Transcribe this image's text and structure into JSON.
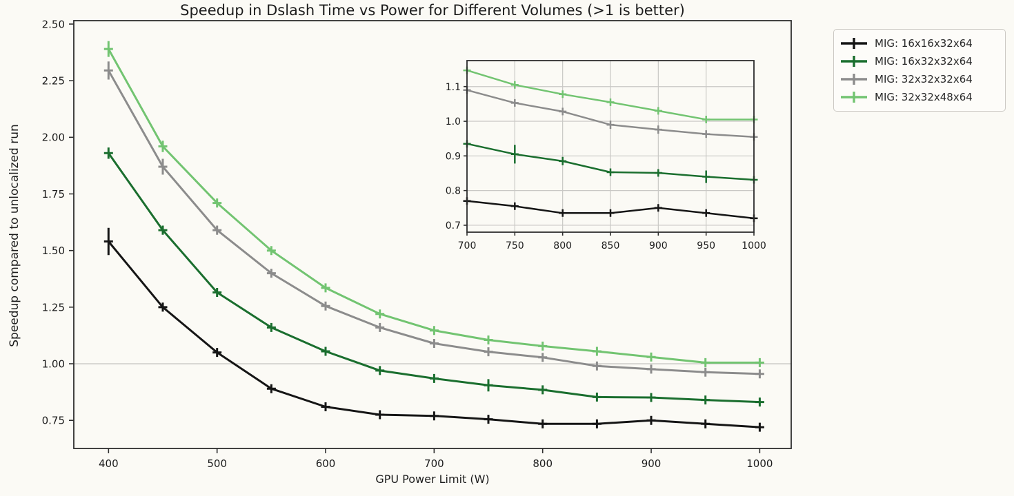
{
  "figure": {
    "background": "#fbfaf5"
  },
  "colors": {
    "spine": "#2d2d2d",
    "tick_text": "#1c1c1c",
    "reference_line": "#c6c5c2",
    "inset_grid": "#c9c8c5",
    "series_black": "#151515",
    "series_darkgreen": "#1a6e2e",
    "series_gray": "#8c8c8c",
    "series_lightgreen": "#72c471"
  },
  "legend": {
    "position": "outside-top-right",
    "items": [
      {
        "label": "MIG: 16x16x32x64",
        "color": "#151515"
      },
      {
        "label": "MIG: 16x32x32x64",
        "color": "#1a6e2e"
      },
      {
        "label": "MIG: 32x32x32x64",
        "color": "#8c8c8c"
      },
      {
        "label": "MIG: 32x32x48x64",
        "color": "#72c471"
      }
    ]
  },
  "chart_data": [
    {
      "type": "line",
      "role": "main",
      "title": "Speedup in Dslash Time vs Power for Different Volumes (>1 is better)",
      "xlabel": "GPU Power Limit (W)",
      "ylabel": "Speedup compared to unlocalized run",
      "x": [
        400,
        450,
        500,
        550,
        600,
        650,
        700,
        750,
        800,
        850,
        900,
        950,
        1000
      ],
      "xticks": [
        400,
        500,
        600,
        700,
        800,
        900,
        1000
      ],
      "yticks": [
        0.75,
        1.0,
        1.25,
        1.5,
        1.75,
        2.0,
        2.25,
        2.5
      ],
      "ytick_labels": [
        "0.75",
        "1.00",
        "1.25",
        "1.50",
        "1.75",
        "2.00",
        "2.25",
        "2.50"
      ],
      "xlim": [
        368,
        1029
      ],
      "ylim": [
        0.626,
        2.515
      ],
      "grid": false,
      "reference_line_y": 1.0,
      "marker": "plus-with-errorbars",
      "series": [
        {
          "name": "MIG: 16x16x32x64",
          "color": "#151515",
          "values": [
            1.54,
            1.25,
            1.05,
            0.89,
            0.81,
            0.775,
            0.77,
            0.755,
            0.735,
            0.735,
            0.75,
            0.735,
            0.72
          ],
          "errors": [
            0.06,
            0.02,
            0.012,
            0.012,
            0.01,
            0.008,
            0.008,
            0.01,
            0.008,
            0.008,
            0.01,
            0.01,
            0.008
          ]
        },
        {
          "name": "MIG: 16x32x32x64",
          "color": "#1a6e2e",
          "values": [
            1.93,
            1.59,
            1.315,
            1.16,
            1.055,
            0.97,
            0.935,
            0.905,
            0.885,
            0.853,
            0.851,
            0.84,
            0.831
          ],
          "errors": [
            0.025,
            0.02,
            0.015,
            0.012,
            0.01,
            0.01,
            0.008,
            0.027,
            0.012,
            0.01,
            0.01,
            0.018,
            0.008
          ]
        },
        {
          "name": "MIG: 32x32x32x64",
          "color": "#8c8c8c",
          "values": [
            2.295,
            1.87,
            1.59,
            1.4,
            1.255,
            1.16,
            1.09,
            1.053,
            1.028,
            0.99,
            0.976,
            0.963,
            0.955
          ],
          "errors": [
            0.04,
            0.035,
            0.02,
            0.015,
            0.012,
            0.01,
            0.01,
            0.01,
            0.01,
            0.012,
            0.012,
            0.01,
            0.008
          ]
        },
        {
          "name": "MIG: 32x32x48x64",
          "color": "#72c471",
          "values": [
            2.39,
            1.96,
            1.71,
            1.5,
            1.335,
            1.22,
            1.147,
            1.105,
            1.078,
            1.055,
            1.03,
            1.005,
            1.005
          ],
          "errors": [
            0.035,
            0.025,
            0.02,
            0.015,
            0.012,
            0.01,
            0.008,
            0.01,
            0.008,
            0.008,
            0.01,
            0.008,
            0.008
          ]
        }
      ]
    },
    {
      "type": "line",
      "role": "inset-zoom",
      "title": "",
      "x": [
        700,
        750,
        800,
        850,
        900,
        950,
        1000
      ],
      "xticks": [
        700,
        750,
        800,
        850,
        900,
        950,
        1000
      ],
      "yticks": [
        0.7,
        0.8,
        0.9,
        1.0,
        1.1
      ],
      "ytick_labels": [
        "0.7",
        "0.8",
        "0.9",
        "1.0",
        "1.1"
      ],
      "xlim": [
        700,
        1000
      ],
      "ylim": [
        0.68,
        1.175
      ],
      "grid": true,
      "marker": "plus-with-errorbars",
      "series": [
        {
          "name": "MIG: 16x16x32x64",
          "color": "#151515",
          "values": [
            0.77,
            0.755,
            0.735,
            0.735,
            0.75,
            0.735,
            0.72
          ],
          "errors": [
            0.008,
            0.01,
            0.008,
            0.008,
            0.01,
            0.01,
            0.008
          ]
        },
        {
          "name": "MIG: 16x32x32x64",
          "color": "#1a6e2e",
          "values": [
            0.935,
            0.905,
            0.885,
            0.853,
            0.851,
            0.84,
            0.831
          ],
          "errors": [
            0.008,
            0.027,
            0.012,
            0.01,
            0.01,
            0.018,
            0.008
          ]
        },
        {
          "name": "MIG: 32x32x32x64",
          "color": "#8c8c8c",
          "values": [
            1.09,
            1.053,
            1.028,
            0.99,
            0.976,
            0.963,
            0.955
          ],
          "errors": [
            0.01,
            0.01,
            0.01,
            0.012,
            0.012,
            0.01,
            0.008
          ]
        },
        {
          "name": "MIG: 32x32x48x64",
          "color": "#72c471",
          "values": [
            1.147,
            1.105,
            1.078,
            1.055,
            1.03,
            1.005,
            1.005
          ],
          "errors": [
            0.008,
            0.01,
            0.008,
            0.008,
            0.01,
            0.008,
            0.008
          ]
        }
      ]
    }
  ]
}
